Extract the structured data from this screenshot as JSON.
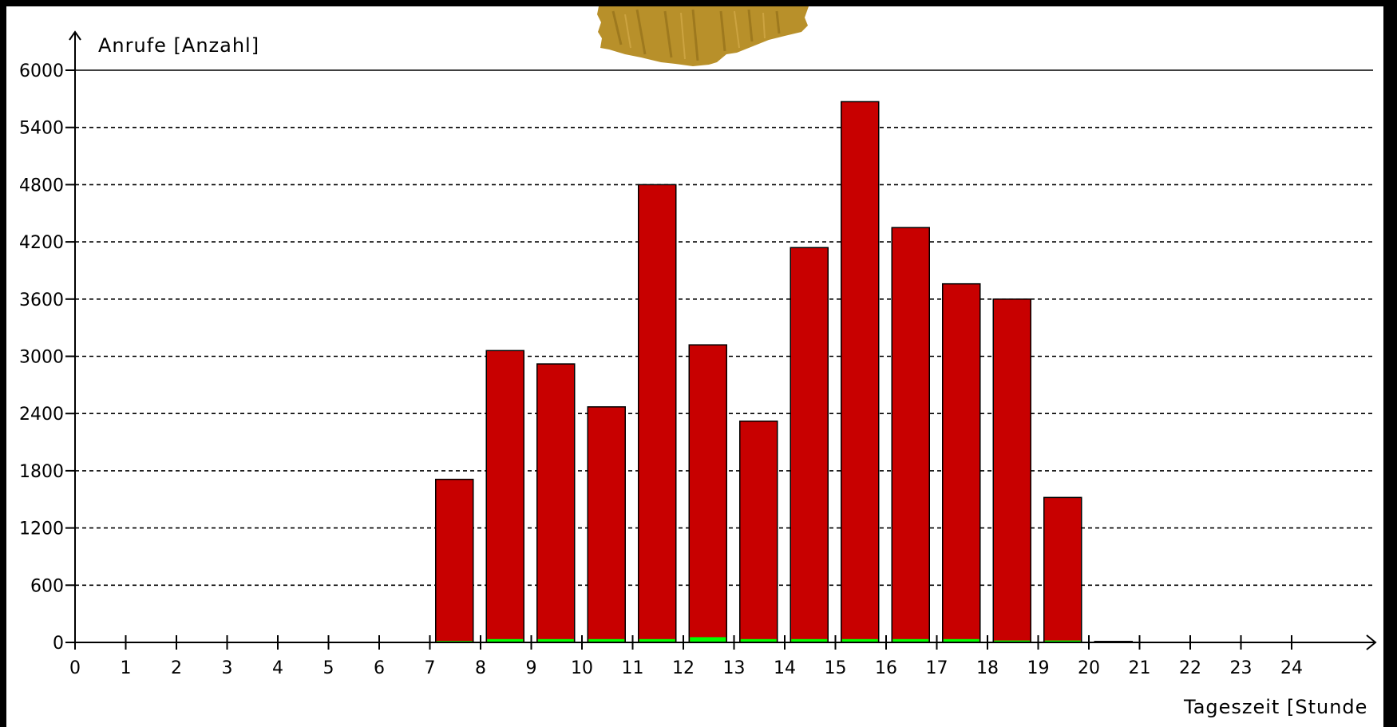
{
  "chart_data": {
    "type": "bar",
    "ylabel": "Anrufe [Anzahl]",
    "xlabel": "Tageszeit [Stunde",
    "ylim": [
      0,
      6000
    ],
    "yticks": [
      "0",
      "600",
      "1200",
      "1800",
      "2400",
      "3000",
      "3600",
      "4200",
      "4800",
      "5400",
      "6000"
    ],
    "xticks": [
      "0",
      "1",
      "2",
      "3",
      "4",
      "5",
      "6",
      "7",
      "8",
      "9",
      "10",
      "11",
      "12",
      "13",
      "14",
      "15",
      "16",
      "17",
      "18",
      "19",
      "20",
      "21",
      "22",
      "23",
      "24"
    ],
    "grid": true,
    "categories": [
      7,
      8,
      9,
      10,
      11,
      12,
      13,
      14,
      15,
      16,
      17,
      18,
      19,
      20
    ],
    "series": [
      {
        "color": "#c80000",
        "values": [
          1710,
          3060,
          2920,
          2470,
          4800,
          3120,
          2320,
          4140,
          5670,
          4350,
          3760,
          3600,
          1520,
          10
        ]
      },
      {
        "color": "#00ff00",
        "values": [
          15,
          35,
          35,
          35,
          35,
          55,
          35,
          35,
          35,
          35,
          35,
          20,
          20,
          0
        ]
      }
    ]
  },
  "decoration": {
    "name": "torn-tape",
    "color": "#b8902a"
  }
}
